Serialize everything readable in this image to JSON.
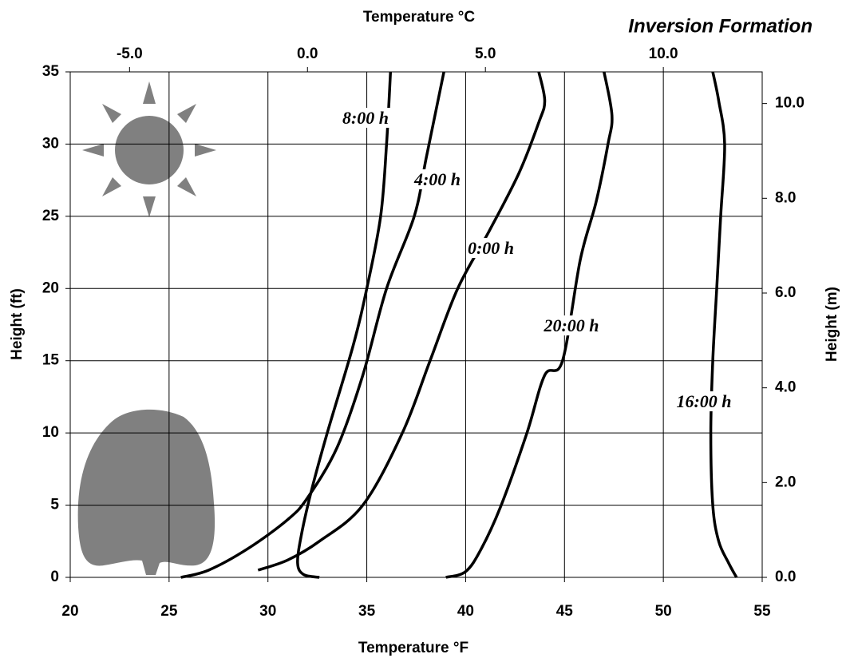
{
  "chart_data": {
    "type": "line",
    "title": "Inversion Formation",
    "x_label": "Temperature °F",
    "x2_label": "Temperature °C",
    "y_label": "Height (ft)",
    "y2_label": "Height (m)",
    "xlim": [
      20,
      55
    ],
    "xticks": [
      20,
      25,
      30,
      35,
      40,
      45,
      50,
      55
    ],
    "x2lim": [
      -6.667,
      12.778
    ],
    "x2ticks": [
      {
        "value": -5,
        "label": "-5.0"
      },
      {
        "value": 0,
        "label": "0.0"
      },
      {
        "value": 5,
        "label": "5.0"
      },
      {
        "value": 10,
        "label": "10.0"
      }
    ],
    "ylim": [
      0,
      35
    ],
    "yticks": [
      0,
      5,
      10,
      15,
      20,
      25,
      30,
      35
    ],
    "y2lim": [
      0,
      10.668
    ],
    "y2ticks": [
      {
        "value": 0,
        "label": "0.0"
      },
      {
        "value": 2,
        "label": "2.0"
      },
      {
        "value": 4,
        "label": "4.0"
      },
      {
        "value": 6,
        "label": "6.0"
      },
      {
        "value": 8,
        "label": "8.0"
      },
      {
        "value": 10,
        "label": "10.0"
      }
    ],
    "grid": true,
    "series": [
      {
        "name": "8:00 h",
        "color": "#000000",
        "x": [
          32.6,
          31.8,
          31.5,
          31.7,
          32.2,
          33,
          34.3,
          35,
          35.7,
          36,
          36.2
        ],
        "values": [
          0,
          0.2,
          1,
          3,
          6,
          10,
          16,
          20,
          25,
          30,
          35
        ]
      },
      {
        "name": "4:00 h",
        "color": "#000000",
        "x": [
          25.6,
          27,
          29,
          31,
          32,
          33.5,
          34.8,
          36,
          37.4,
          38,
          38.6,
          38.9
        ],
        "values": [
          0,
          0.5,
          2,
          4,
          5.5,
          9,
          14,
          20,
          25,
          29,
          33,
          35
        ]
      },
      {
        "name": "0:00 h",
        "color": "#000000",
        "x": [
          29.5,
          31,
          32.6,
          34.8,
          36.8,
          38.2,
          39.6,
          41.2,
          42.7,
          43.7,
          44,
          43.7
        ],
        "values": [
          0.5,
          1.2,
          2.5,
          5,
          10,
          15,
          20,
          24,
          28,
          31.5,
          33,
          35
        ]
      },
      {
        "name": "20:00 h",
        "color": "#000000",
        "x": [
          39,
          40,
          40.8,
          41.8,
          43.1,
          44,
          44.9,
          45.8,
          46.6,
          47.2,
          47.4,
          47
        ],
        "values": [
          0,
          0.4,
          2,
          5,
          10,
          14,
          15,
          22,
          26,
          30,
          32,
          35
        ]
      },
      {
        "name": "16:00 h",
        "color": "#000000",
        "x": [
          53.7,
          53.3,
          52.8,
          52.5,
          52.4,
          52.5,
          52.7,
          52.9,
          53.1,
          52.8,
          52.5
        ],
        "values": [
          0,
          1,
          2.5,
          5,
          10,
          15,
          20,
          25,
          30,
          33,
          35
        ]
      }
    ]
  }
}
